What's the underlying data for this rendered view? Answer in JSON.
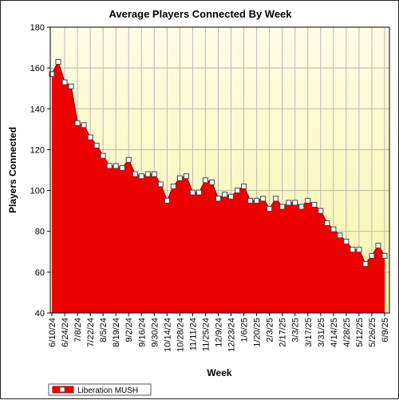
{
  "chart_data": {
    "type": "area",
    "title": "Average Players Connected By Week",
    "xlabel": "Week",
    "ylabel": "Players Connected",
    "ylim": [
      40,
      180
    ],
    "yticks": [
      40,
      60,
      80,
      100,
      120,
      140,
      160,
      180
    ],
    "grid": true,
    "legend_position": "bottom-left",
    "colors": {
      "plot_background_top": "#fffbe6",
      "plot_background_bottom": "#f6f6a8",
      "fill": "#ee0000",
      "line": "#aa0000",
      "grid": "#b8b8b8"
    },
    "x_tick_labels": [
      "6/10/24",
      "6/24/24",
      "7/8/24",
      "7/22/24",
      "8/5/24",
      "8/19/24",
      "9/2/24",
      "9/16/24",
      "9/30/24",
      "10/14/24",
      "10/28/24",
      "11/11/24",
      "11/25/24",
      "12/9/24",
      "12/23/24",
      "1/6/25",
      "1/20/25",
      "2/3/25",
      "2/17/25",
      "3/3/25",
      "3/17/25",
      "3/31/25",
      "4/14/25",
      "4/28/25",
      "5/12/25",
      "5/26/25",
      "6/9/25"
    ],
    "series": [
      {
        "name": "Liberation MUSH",
        "x": [
          "6/10/24",
          "6/17/24",
          "6/24/24",
          "7/1/24",
          "7/8/24",
          "7/15/24",
          "7/22/24",
          "7/29/24",
          "8/5/24",
          "8/12/24",
          "8/19/24",
          "8/26/24",
          "9/2/24",
          "9/9/24",
          "9/16/24",
          "9/23/24",
          "9/30/24",
          "10/7/24",
          "10/14/24",
          "10/21/24",
          "10/28/24",
          "11/4/24",
          "11/11/24",
          "11/18/24",
          "11/25/24",
          "12/2/24",
          "12/9/24",
          "12/16/24",
          "12/23/24",
          "12/30/24",
          "1/6/25",
          "1/13/25",
          "1/20/25",
          "1/27/25",
          "2/3/25",
          "2/10/25",
          "2/17/25",
          "2/24/25",
          "3/3/25",
          "3/10/25",
          "3/17/25",
          "3/24/25",
          "3/31/25",
          "4/7/25",
          "4/14/25",
          "4/21/25",
          "4/28/25",
          "5/5/25",
          "5/12/25",
          "5/19/25",
          "5/26/25",
          "6/2/25",
          "6/9/25"
        ],
        "values": [
          157,
          163,
          153,
          151,
          133,
          132,
          126,
          122,
          117,
          112,
          112,
          111,
          115,
          108,
          107,
          108,
          108,
          103,
          95,
          102,
          106,
          107,
          99,
          99,
          105,
          104,
          96,
          98,
          97,
          100,
          102,
          95,
          95,
          96,
          91,
          96,
          92,
          94,
          94,
          92,
          95,
          93,
          90,
          84,
          81,
          78,
          75,
          71,
          71,
          64,
          68,
          73,
          68
        ]
      }
    ]
  }
}
